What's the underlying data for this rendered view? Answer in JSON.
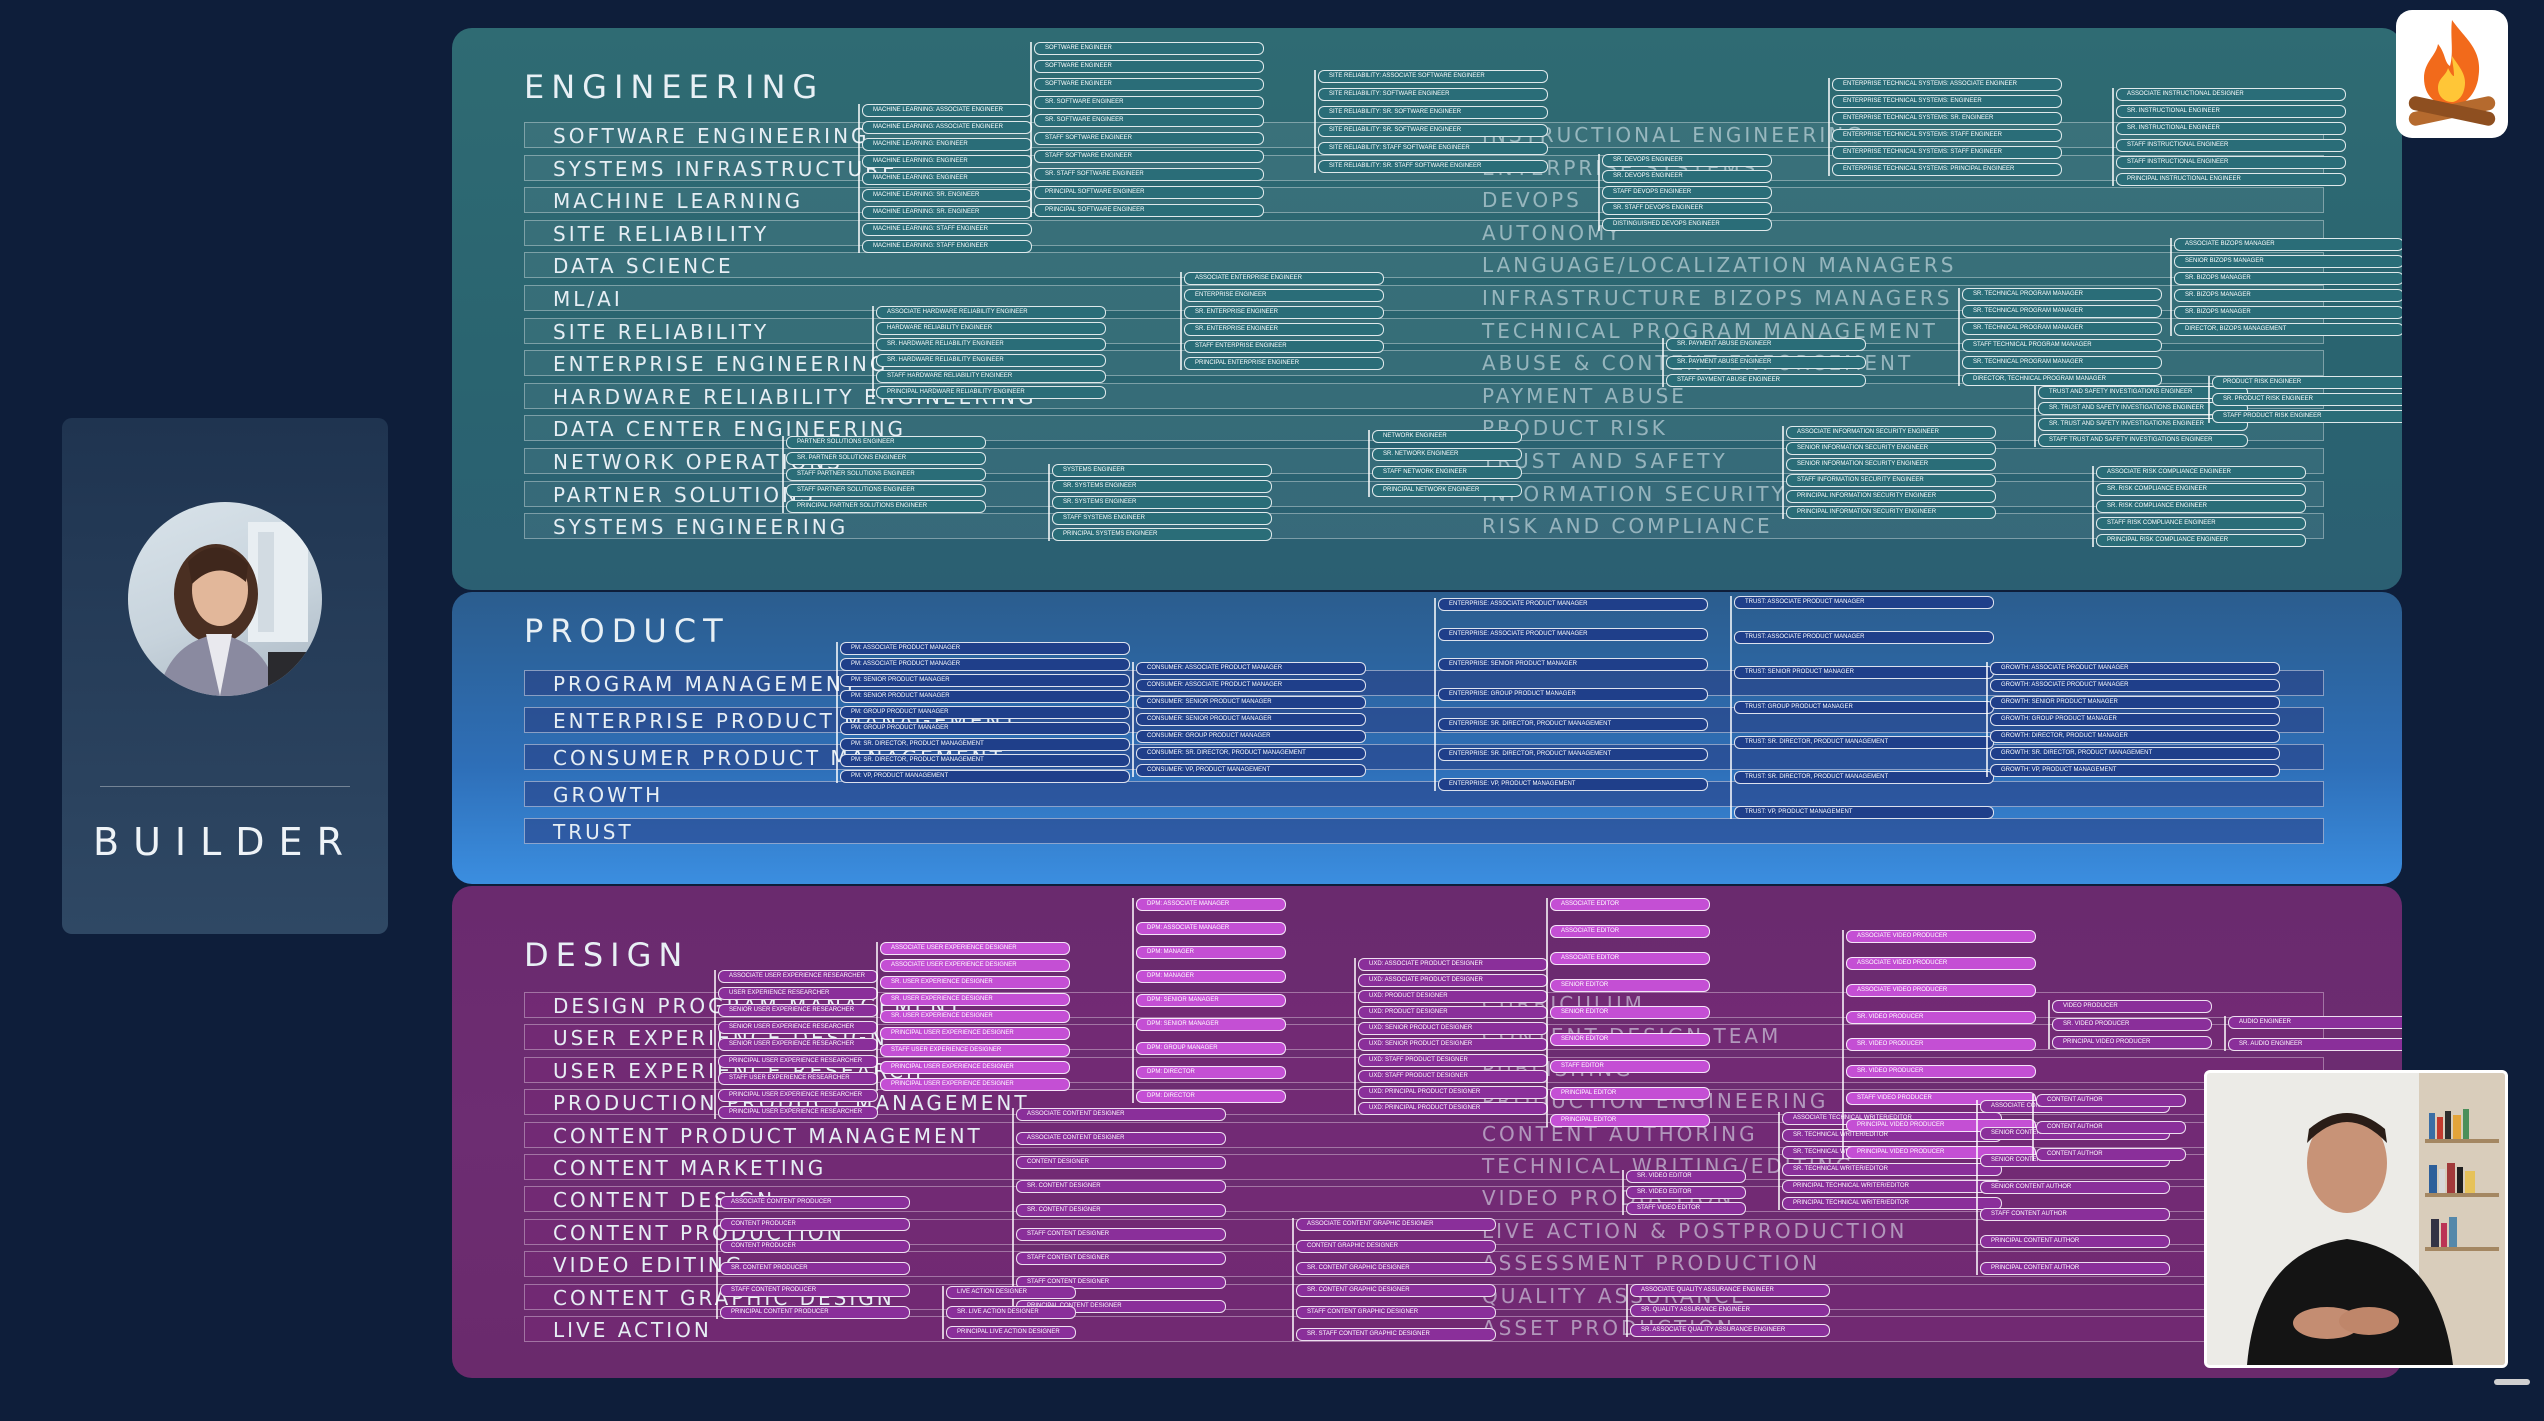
{
  "builder": {
    "label": "BUILDER"
  },
  "engineering": {
    "title": "ENGINEERING",
    "categories": [
      "SOFTWARE ENGINEERING",
      "SYSTEMS INFRASTRUCTURE",
      "MACHINE LEARNING",
      "SITE RELIABILITY",
      "DATA SCIENCE",
      "ML/AI",
      "SITE RELIABILITY",
      "ENTERPRISE ENGINEERING",
      "HARDWARE RELIABILITY ENGINEERING",
      "DATA CENTER ENGINEERING",
      "NETWORK OPERATIONS",
      "PARTNER SOLUTIONS",
      "SYSTEMS ENGINEERING"
    ],
    "right_categories": [
      "INSTRUCTIONAL ENGINEERING",
      "ENTERPRISE SYSTEMS",
      "DEVOPS",
      "AUTONOMY",
      "LANGUAGE/LOCALIZATION MANAGERS",
      "INFRASTRUCTURE BIZOPS MANAGERS",
      "TECHNICAL PROGRAM MANAGEMENT",
      "ABUSE & CONTENT ENFORCEMENT",
      "PAYMENT ABUSE",
      "PRODUCT RISK",
      "TRUST AND SAFETY",
      "INFORMATION SECURITY",
      "RISK AND COMPLIANCE"
    ],
    "columns": [
      {
        "roles": [
          "MACHINE LEARNING: ASSOCIATE ENGINEER",
          "MACHINE LEARNING: ASSOCIATE ENGINEER",
          "MACHINE LEARNING: ENGINEER",
          "MACHINE LEARNING: ENGINEER",
          "MACHINE LEARNING: ENGINEER",
          "MACHINE LEARNING: SR. ENGINEER",
          "MACHINE LEARNING: SR. ENGINEER",
          "MACHINE LEARNING: STAFF ENGINEER",
          "MACHINE LEARNING: STAFF ENGINEER"
        ]
      },
      {
        "roles": [
          "SOFTWARE ENGINEER",
          "SOFTWARE ENGINEER",
          "SOFTWARE ENGINEER",
          "SR. SOFTWARE ENGINEER",
          "SR. SOFTWARE ENGINEER",
          "STAFF SOFTWARE ENGINEER",
          "STAFF SOFTWARE ENGINEER",
          "SR. STAFF SOFTWARE ENGINEER",
          "PRINCIPAL SOFTWARE ENGINEER",
          "PRINCIPAL SOFTWARE ENGINEER"
        ]
      },
      {
        "roles": [
          "SITE RELIABILITY: ASSOCIATE SOFTWARE ENGINEER",
          "SITE RELIABILITY: SOFTWARE ENGINEER",
          "SITE RELIABILITY: SR. SOFTWARE ENGINEER",
          "SITE RELIABILITY: SR. SOFTWARE ENGINEER",
          "SITE RELIABILITY: STAFF SOFTWARE ENGINEER",
          "SITE RELIABILITY: SR. STAFF SOFTWARE ENGINEER"
        ]
      },
      {
        "roles": [
          "ASSOCIATE HARDWARE RELIABILITY ENGINEER",
          "HARDWARE RELIABILITY ENGINEER",
          "SR. HARDWARE RELIABILITY ENGINEER",
          "SR. HARDWARE RELIABILITY ENGINEER",
          "STAFF HARDWARE RELIABILITY ENGINEER",
          "PRINCIPAL HARDWARE RELIABILITY ENGINEER"
        ]
      },
      {
        "roles": [
          "ASSOCIATE ENTERPRISE ENGINEER",
          "ENTERPRISE ENGINEER",
          "SR. ENTERPRISE ENGINEER",
          "SR. ENTERPRISE ENGINEER",
          "STAFF ENTERPRISE ENGINEER",
          "PRINCIPAL ENTERPRISE ENGINEER"
        ]
      },
      {
        "roles": [
          "PARTNER SOLUTIONS ENGINEER",
          "SR. PARTNER SOLUTIONS ENGINEER",
          "STAFF PARTNER SOLUTIONS ENGINEER",
          "STAFF PARTNER SOLUTIONS ENGINEER",
          "PRINCIPAL PARTNER SOLUTIONS ENGINEER"
        ]
      },
      {
        "roles": [
          "SYSTEMS ENGINEER",
          "SR. SYSTEMS ENGINEER",
          "SR. SYSTEMS ENGINEER",
          "STAFF SYSTEMS ENGINEER",
          "PRINCIPAL SYSTEMS ENGINEER"
        ]
      },
      {
        "roles": [
          "NETWORK ENGINEER",
          "SR. NETWORK ENGINEER",
          "STAFF NETWORK ENGINEER",
          "PRINCIPAL NETWORK ENGINEER"
        ]
      },
      {
        "roles": [
          "SR. DEVOPS ENGINEER",
          "SR. DEVOPS ENGINEER",
          "STAFF DEVOPS ENGINEER",
          "SR. STAFF DEVOPS ENGINEER",
          "DISTINGUISHED DEVOPS ENGINEER"
        ]
      },
      {
        "roles": [
          "SR. PAYMENT ABUSE ENGINEER",
          "SR. PAYMENT ABUSE ENGINEER",
          "STAFF PAYMENT ABUSE ENGINEER"
        ]
      },
      {
        "roles": [
          "ASSOCIATE INFORMATION SECURITY ENGINEER",
          "SENIOR INFORMATION SECURITY ENGINEER",
          "SENIOR INFORMATION SECURITY ENGINEER",
          "STAFF INFORMATION SECURITY ENGINEER",
          "PRINCIPAL INFORMATION SECURITY ENGINEER",
          "PRINCIPAL INFORMATION SECURITY ENGINEER"
        ]
      },
      {
        "roles": [
          "ENTERPRISE TECHNICAL SYSTEMS: ASSOCIATE ENGINEER",
          "ENTERPRISE TECHNICAL SYSTEMS: ENGINEER",
          "ENTERPRISE TECHNICAL SYSTEMS: SR. ENGINEER",
          "ENTERPRISE TECHNICAL SYSTEMS: STAFF ENGINEER",
          "ENTERPRISE TECHNICAL SYSTEMS: STAFF ENGINEER",
          "ENTERPRISE TECHNICAL SYSTEMS: PRINCIPAL ENGINEER"
        ]
      },
      {
        "roles": [
          "SR. TECHNICAL PROGRAM MANAGER",
          "SR. TECHNICAL PROGRAM MANAGER",
          "SR. TECHNICAL PROGRAM MANAGER",
          "STAFF TECHNICAL PROGRAM MANAGER",
          "SR. TECHNICAL PROGRAM MANAGER",
          "DIRECTOR, TECHNICAL PROGRAM MANAGER"
        ]
      },
      {
        "roles": [
          "TRUST AND SAFETY INVESTIGATIONS ENGINEER",
          "SR. TRUST AND SAFETY INVESTIGATIONS ENGINEER",
          "SR. TRUST AND SAFETY INVESTIGATIONS ENGINEER",
          "STAFF TRUST AND SAFETY INVESTIGATIONS ENGINEER"
        ]
      },
      {
        "roles": [
          "ASSOCIATE RISK COMPLIANCE ENGINEER",
          "SR. RISK COMPLIANCE ENGINEER",
          "SR. RISK COMPLIANCE ENGINEER",
          "STAFF RISK COMPLIANCE ENGINEER",
          "PRINCIPAL RISK COMPLIANCE ENGINEER"
        ]
      },
      {
        "roles": [
          "ASSOCIATE INSTRUCTIONAL DESIGNER",
          "SR. INSTRUCTIONAL ENGINEER",
          "SR. INSTRUCTIONAL ENGINEER",
          "STAFF INSTRUCTIONAL ENGINEER",
          "STAFF INSTRUCTIONAL ENGINEER",
          "PRINCIPAL INSTRUCTIONAL ENGINEER"
        ]
      },
      {
        "roles": [
          "ASSOCIATE BIZOPS MANAGER",
          "SENIOR BIZOPS MANAGER",
          "SR. BIZOPS MANAGER",
          "SR. BIZOPS MANAGER",
          "SR. BIZOPS MANAGER",
          "DIRECTOR, BIZOPS MANAGEMENT"
        ]
      },
      {
        "roles": [
          "PRODUCT RISK ENGINEER",
          "SR. PRODUCT RISK ENGINEER",
          "STAFF PRODUCT RISK ENGINEER"
        ]
      }
    ]
  },
  "product": {
    "title": "PRODUCT",
    "categories": [
      "PROGRAM MANAGEMENT",
      "ENTERPRISE PRODUCT MANAGEMENT",
      "CONSUMER PRODUCT MANAGEMENT",
      "GROWTH",
      "TRUST"
    ],
    "columns": [
      {
        "roles": [
          "PM: ASSOCIATE PRODUCT MANAGER",
          "PM: ASSOCIATE PRODUCT MANAGER",
          "PM: SENIOR PRODUCT MANAGER",
          "PM: SENIOR PRODUCT MANAGER",
          "PM: GROUP PRODUCT MANAGER",
          "PM: GROUP PRODUCT MANAGER",
          "PM: SR. DIRECTOR, PRODUCT MANAGEMENT",
          "PM: SR. DIRECTOR, PRODUCT MANAGEMENT",
          "PM: VP, PRODUCT MANAGEMENT"
        ]
      },
      {
        "roles": [
          "CONSUMER: ASSOCIATE PRODUCT MANAGER",
          "CONSUMER: ASSOCIATE PRODUCT MANAGER",
          "CONSUMER: SENIOR PRODUCT MANAGER",
          "CONSUMER: SENIOR PRODUCT MANAGER",
          "CONSUMER: GROUP PRODUCT MANAGER",
          "CONSUMER: SR. DIRECTOR, PRODUCT MANAGEMENT",
          "CONSUMER: VP, PRODUCT MANAGEMENT"
        ]
      },
      {
        "roles": [
          "ENTERPRISE: ASSOCIATE PRODUCT MANAGER",
          "ENTERPRISE: ASSOCIATE PRODUCT MANAGER",
          "ENTERPRISE: SENIOR PRODUCT MANAGER",
          "ENTERPRISE: GROUP PRODUCT MANAGER",
          "ENTERPRISE: SR. DIRECTOR, PRODUCT MANAGEMENT",
          "ENTERPRISE: SR. DIRECTOR, PRODUCT MANAGEMENT",
          "ENTERPRISE: VP, PRODUCT MANAGEMENT"
        ]
      },
      {
        "roles": [
          "TRUST: ASSOCIATE PRODUCT MANAGER",
          "TRUST: ASSOCIATE PRODUCT MANAGER",
          "TRUST: SENIOR PRODUCT MANAGER",
          "TRUST: GROUP PRODUCT MANAGER",
          "TRUST: SR. DIRECTOR, PRODUCT MANAGEMENT",
          "TRUST: SR. DIRECTOR, PRODUCT MANAGEMENT",
          "TRUST: VP, PRODUCT MANAGEMENT"
        ]
      },
      {
        "roles": [
          "GROWTH: ASSOCIATE PRODUCT MANAGER",
          "GROWTH: ASSOCIATE PRODUCT MANAGER",
          "GROWTH: SENIOR PRODUCT MANAGER",
          "GROWTH: GROUP PRODUCT MANAGER",
          "GROWTH: DIRECTOR, PRODUCT MANAGER",
          "GROWTH: SR. DIRECTOR, PRODUCT MANAGEMENT",
          "GROWTH: VP, PRODUCT MANAGEMENT"
        ]
      }
    ]
  },
  "design": {
    "title": "DESIGN",
    "categories": [
      "DESIGN PROGRAM MANAGEMENT",
      "USER EXPERIENCE DESIGN",
      "USER EXPERIENCE RESEARCH",
      "PRODUCTION PRODUCT MANAGEMENT",
      "CONTENT PRODUCT MANAGEMENT",
      "CONTENT MARKETING",
      "CONTENT DESIGN",
      "CONTENT PRODUCTION",
      "VIDEO EDITING",
      "CONTENT GRAPHIC DESIGN",
      "LIVE ACTION"
    ],
    "right_categories": [
      "CURRICULUM",
      "CONTENT DESIGN TEAM",
      "PUBLISHING",
      "PRODUCTION ENGINEERING",
      "CONTENT AUTHORING",
      "TECHNICAL WRITING/EDITING",
      "VIDEO PRODUCTION",
      "LIVE ACTION & POSTPRODUCTION",
      "ASSESSMENT PRODUCTION",
      "QUALITY ASSURANCE",
      "ASSET PRODUCTION"
    ],
    "columns": [
      {
        "roles": [
          "ASSOCIATE USER EXPERIENCE RESEARCHER",
          "USER EXPERIENCE RESEARCHER",
          "SENIOR USER EXPERIENCE RESEARCHER",
          "SENIOR USER EXPERIENCE RESEARCHER",
          "SENIOR USER EXPERIENCE RESEARCHER",
          "PRINCIPAL USER EXPERIENCE RESEARCHER",
          "STAFF USER EXPERIENCE RESEARCHER",
          "PRINCIPAL USER EXPERIENCE RESEARCHER",
          "PRINCIPAL USER EXPERIENCE RESEARCHER"
        ]
      },
      {
        "roles": [
          "ASSOCIATE USER EXPERIENCE DESIGNER",
          "ASSOCIATE USER EXPERIENCE DESIGNER",
          "SR. USER EXPERIENCE DESIGNER",
          "SR. USER EXPERIENCE DESIGNER",
          "SR. USER EXPERIENCE DESIGNER",
          "PRINCIPAL USER EXPERIENCE DESIGNER",
          "STAFF USER EXPERIENCE DESIGNER",
          "PRINCIPAL USER EXPERIENCE DESIGNER",
          "PRINCIPAL USER EXPERIENCE DESIGNER"
        ]
      },
      {
        "roles": [
          "ASSOCIATE CONTENT PRODUCER",
          "CONTENT PRODUCER",
          "CONTENT PRODUCER",
          "SR. CONTENT PRODUCER",
          "STAFF CONTENT PRODUCER",
          "PRINCIPAL CONTENT PRODUCER"
        ]
      },
      {
        "roles": [
          "DPM: ASSOCIATE MANAGER",
          "DPM: ASSOCIATE MANAGER",
          "DPM: MANAGER",
          "DPM: MANAGER",
          "DPM: SENIOR MANAGER",
          "DPM: SENIOR MANAGER",
          "DPM: GROUP MANAGER",
          "DPM: DIRECTOR",
          "DPM: DIRECTOR"
        ]
      },
      {
        "roles": [
          "ASSOCIATE CONTENT DESIGNER",
          "ASSOCIATE CONTENT DESIGNER",
          "CONTENT DESIGNER",
          "SR. CONTENT DESIGNER",
          "SR. CONTENT DESIGNER",
          "STAFF CONTENT DESIGNER",
          "STAFF CONTENT DESIGNER",
          "STAFF CONTENT DESIGNER",
          "PRINCIPAL CONTENT DESIGNER"
        ]
      },
      {
        "roles": [
          "LIVE ACTION DESIGNER",
          "SR. LIVE ACTION DESIGNER",
          "PRINCIPAL LIVE ACTION DESIGNER"
        ]
      },
      {
        "roles": [
          "ASSOCIATE CONTENT GRAPHIC DESIGNER",
          "CONTENT GRAPHIC DESIGNER",
          "SR. CONTENT GRAPHIC DESIGNER",
          "SR. CONTENT GRAPHIC DESIGNER",
          "STAFF CONTENT GRAPHIC DESIGNER",
          "SR. STAFF CONTENT GRAPHIC DESIGNER"
        ]
      },
      {
        "roles": [
          "UXD: ASSOCIATE PRODUCT DESIGNER",
          "UXD: ASSOCIATE PRODUCT DESIGNER",
          "UXD: PRODUCT DESIGNER",
          "UXD: PRODUCT DESIGNER",
          "UXD: SENIOR PRODUCT DESIGNER",
          "UXD: SENIOR PRODUCT DESIGNER",
          "UXD: STAFF PRODUCT DESIGNER",
          "UXD: STAFF PRODUCT DESIGNER",
          "UXD: PRINCIPAL PRODUCT DESIGNER",
          "UXD: PRINCIPAL PRODUCT DESIGNER"
        ]
      },
      {
        "roles": [
          "ASSOCIATE EDITOR",
          "ASSOCIATE EDITOR",
          "ASSOCIATE EDITOR",
          "SENIOR EDITOR",
          "SENIOR EDITOR",
          "SENIOR EDITOR",
          "STAFF EDITOR",
          "PRINCIPAL EDITOR",
          "PRINCIPAL EDITOR"
        ]
      },
      {
        "roles": [
          "SR. VIDEO EDITOR",
          "SR. VIDEO EDITOR",
          "STAFF VIDEO EDITOR"
        ]
      },
      {
        "roles": [
          "ASSOCIATE QUALITY ASSURANCE ENGINEER",
          "SR. QUALITY ASSURANCE ENGINEER",
          "SR. ASSOCIATE QUALITY ASSURANCE ENGINEER"
        ]
      },
      {
        "roles": [
          "ASSOCIATE TECHNICAL WRITER/EDITOR",
          "SR. TECHNICAL WRITER/EDITOR",
          "SR. TECHNICAL WRITER/EDITOR",
          "SR. TECHNICAL WRITER/EDITOR",
          "PRINCIPAL TECHNICAL WRITER/EDITOR",
          "PRINCIPAL TECHNICAL WRITER/EDITOR"
        ]
      },
      {
        "roles": [
          "ASSOCIATE VIDEO PRODUCER",
          "ASSOCIATE VIDEO PRODUCER",
          "ASSOCIATE VIDEO PRODUCER",
          "SR. VIDEO PRODUCER",
          "SR. VIDEO PRODUCER",
          "SR. VIDEO PRODUCER",
          "STAFF VIDEO PRODUCER",
          "PRINCIPAL VIDEO PRODUCER",
          "PRINCIPAL VIDEO PRODUCER"
        ]
      },
      {
        "roles": [
          "ASSOCIATE CONTENT AUTHOR",
          "SENIOR CONTENT AUTHOR",
          "SENIOR CONTENT AUTHOR",
          "SENIOR CONTENT AUTHOR",
          "STAFF CONTENT AUTHOR",
          "PRINCIPAL CONTENT AUTHOR",
          "PRINCIPAL CONTENT AUTHOR"
        ]
      },
      {
        "roles": [
          "VIDEO PRODUCER",
          "SR. VIDEO PRODUCER",
          "PRINCIPAL VIDEO PRODUCER"
        ]
      },
      {
        "roles": [
          "CONTENT AUTHOR",
          "CONTENT AUTHOR",
          "CONTENT AUTHOR"
        ]
      },
      {
        "roles": [
          "AUDIO ENGINEER",
          "SR. AUDIO ENGINEER"
        ]
      }
    ]
  }
}
